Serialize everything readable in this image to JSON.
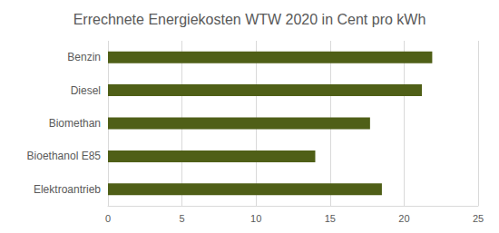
{
  "chart_data": {
    "type": "bar",
    "title": "Errechnete Energiekosten WTW 2020 in Cent pro kWh",
    "orientation": "horizontal",
    "categories": [
      "Benzin",
      "Diesel",
      "Biomethan",
      "Bioethanol E85",
      "Elektroantrieb"
    ],
    "values": [
      21.9,
      21.2,
      17.7,
      14.0,
      18.5
    ],
    "color": "#4f5f17",
    "xlim": [
      0,
      25
    ],
    "xticks": [
      0,
      5,
      10,
      15,
      20,
      25
    ],
    "grid": true
  }
}
